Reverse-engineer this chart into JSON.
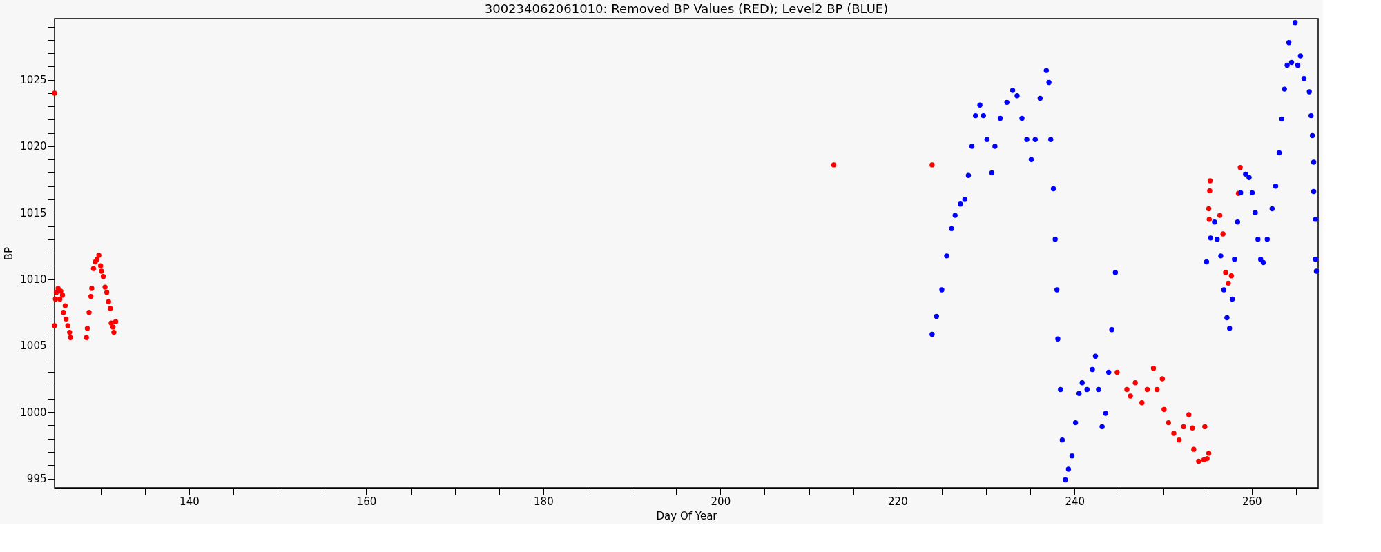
{
  "chart_data": {
    "type": "scatter",
    "title": "300234062061010: Removed BP Values (RED); Level2 BP (BLUE)",
    "xlabel": "Day Of Year",
    "ylabel": "BP",
    "xlim": [
      124.8,
      267.5
    ],
    "xticks": [
      {
        "value": 125,
        "label": null
      },
      {
        "value": 130,
        "label": null
      },
      {
        "value": 135,
        "label": null
      },
      140,
      {
        "value": 145,
        "label": null
      },
      {
        "value": 150,
        "label": null
      },
      {
        "value": 155,
        "label": null
      },
      160,
      {
        "value": 165,
        "label": null
      },
      {
        "value": 170,
        "label": null
      },
      {
        "value": 175,
        "label": null
      },
      180,
      {
        "value": 185,
        "label": null
      },
      {
        "value": 190,
        "label": null
      },
      {
        "value": 195,
        "label": null
      },
      200,
      {
        "value": 205,
        "label": null
      },
      {
        "value": 210,
        "label": null
      },
      {
        "value": 215,
        "label": null
      },
      220,
      {
        "value": 225,
        "label": null
      },
      {
        "value": 230,
        "label": null
      },
      {
        "value": 235,
        "label": null
      },
      240,
      {
        "value": 245,
        "label": null
      },
      {
        "value": 250,
        "label": null
      },
      {
        "value": 255,
        "label": null
      },
      260,
      {
        "value": 265,
        "label": null
      }
    ],
    "ylim": [
      994.3,
      1029.6
    ],
    "yticks": [
      995,
      {
        "value": 996,
        "label": null
      },
      {
        "value": 997,
        "label": null
      },
      {
        "value": 998,
        "label": null
      },
      {
        "value": 999,
        "label": null
      },
      1000,
      {
        "value": 1001,
        "label": null
      },
      {
        "value": 1002,
        "label": null
      },
      {
        "value": 1003,
        "label": null
      },
      {
        "value": 1004,
        "label": null
      },
      1005,
      {
        "value": 1006,
        "label": null
      },
      {
        "value": 1007,
        "label": null
      },
      {
        "value": 1008,
        "label": null
      },
      {
        "value": 1009,
        "label": null
      },
      1010,
      {
        "value": 1011,
        "label": null
      },
      {
        "value": 1012,
        "label": null
      },
      {
        "value": 1013,
        "label": null
      },
      {
        "value": 1014,
        "label": null
      },
      1015,
      {
        "value": 1016,
        "label": null
      },
      {
        "value": 1017,
        "label": null
      },
      {
        "value": 1018,
        "label": null
      },
      {
        "value": 1019,
        "label": null
      },
      1020,
      {
        "value": 1021,
        "label": null
      },
      {
        "value": 1022,
        "label": null
      },
      {
        "value": 1023,
        "label": null
      },
      {
        "value": 1024,
        "label": null
      },
      1025,
      {
        "value": 1026,
        "label": null
      },
      {
        "value": 1027,
        "label": null
      },
      {
        "value": 1028,
        "label": null
      },
      {
        "value": 1029,
        "label": null
      }
    ],
    "grid": false,
    "marker": "circle",
    "series": [
      {
        "color": "#ff0000",
        "x": [
          124.8,
          124.8,
          124.9,
          125.0,
          125.2,
          125.4,
          125.5,
          125.7,
          125.8,
          126.0,
          126.1,
          126.3,
          126.5,
          126.6,
          128.4,
          128.5,
          128.7,
          128.9,
          129.0,
          129.2,
          129.4,
          129.6,
          129.8,
          130.0,
          130.1,
          130.3,
          130.5,
          130.7,
          130.9,
          131.1,
          131.2,
          131.4,
          131.5,
          131.7,
          212.8,
          223.9,
          244.8,
          245.9,
          246.3,
          246.85,
          247.6,
          248.2,
          248.9,
          249.3,
          249.9,
          250.1,
          250.6,
          251.2,
          251.8,
          252.3,
          252.9,
          253.3,
          253.45,
          254.0,
          254.6,
          254.7,
          254.95,
          255.15,
          255.15,
          255.2,
          255.25,
          255.3,
          256.4,
          256.75,
          257.05,
          257.35,
          257.7,
          258.5,
          258.7
        ],
        "values": [
          1024.0,
          1006.5,
          1008.5,
          1009.0,
          1009.3,
          1008.5,
          1009.1,
          1008.8,
          1007.5,
          1008.0,
          1007.0,
          1006.5,
          1006.0,
          1005.6,
          1005.6,
          1006.3,
          1007.5,
          1008.7,
          1009.3,
          1010.8,
          1011.3,
          1011.5,
          1011.8,
          1011.0,
          1010.6,
          1010.2,
          1009.4,
          1009.0,
          1008.3,
          1007.8,
          1006.7,
          1006.4,
          1006.0,
          1006.8,
          1018.6,
          1018.6,
          1003.0,
          1001.7,
          1001.2,
          1002.2,
          1000.7,
          1001.7,
          1003.3,
          1001.7,
          1002.5,
          1000.2,
          999.2,
          998.4,
          997.9,
          998.9,
          999.8,
          998.8,
          997.2,
          996.3,
          996.4,
          998.9,
          996.5,
          996.9,
          1015.3,
          1014.5,
          1016.65,
          1017.4,
          1014.8,
          1013.4,
          1010.5,
          1009.7,
          1010.25,
          1016.45,
          1018.4
        ]
      },
      {
        "color": "#0000ff",
        "x": [
          223.9,
          224.4,
          225.0,
          225.55,
          226.1,
          226.5,
          227.1,
          227.6,
          228.0,
          228.4,
          228.8,
          229.3,
          229.7,
          230.1,
          230.65,
          231.0,
          231.6,
          232.35,
          233.0,
          233.5,
          234.05,
          234.6,
          235.1,
          235.55,
          236.1,
          236.8,
          237.1,
          237.3,
          237.6,
          237.8,
          238.0,
          238.1,
          238.4,
          238.6,
          238.95,
          239.3,
          239.7,
          240.1,
          240.5,
          240.85,
          241.4,
          242.0,
          242.35,
          242.7,
          243.1,
          243.5,
          243.85,
          244.2,
          244.6,
          254.9,
          255.35,
          255.8,
          256.1,
          256.5,
          256.85,
          257.2,
          257.5,
          257.8,
          258.05,
          258.4,
          258.75,
          259.3,
          259.7,
          260.05,
          260.4,
          260.7,
          261.0,
          261.3,
          261.75,
          262.3,
          262.7,
          263.1,
          263.4,
          263.7,
          264.0,
          264.2,
          264.5,
          264.9,
          265.2,
          265.5,
          265.9,
          266.5,
          266.7,
          266.85,
          267.0,
          267.0,
          267.2,
          267.2,
          267.3
        ],
        "values": [
          1005.85,
          1007.2,
          1009.2,
          1011.75,
          1013.8,
          1014.8,
          1015.65,
          1016.0,
          1017.8,
          1020.0,
          1022.3,
          1023.1,
          1022.3,
          1020.5,
          1018.0,
          1020.0,
          1022.1,
          1023.3,
          1024.2,
          1023.8,
          1022.1,
          1020.5,
          1019.0,
          1020.5,
          1023.6,
          1025.7,
          1024.8,
          1020.5,
          1016.8,
          1013.0,
          1009.2,
          1005.5,
          1001.7,
          997.9,
          994.9,
          995.7,
          996.7,
          999.2,
          1001.4,
          1002.2,
          1001.7,
          1003.2,
          1004.2,
          1001.7,
          998.9,
          999.9,
          1003.0,
          1006.2,
          1010.5,
          1011.3,
          1013.1,
          1014.3,
          1013.0,
          1011.75,
          1009.2,
          1007.1,
          1006.3,
          1008.5,
          1011.5,
          1014.3,
          1016.5,
          1017.9,
          1017.65,
          1016.5,
          1015.0,
          1013.0,
          1011.5,
          1011.25,
          1013.0,
          1015.3,
          1017.0,
          1019.5,
          1022.05,
          1024.3,
          1026.1,
          1027.8,
          1026.3,
          1029.3,
          1026.1,
          1026.8,
          1025.1,
          1024.1,
          1022.3,
          1020.8,
          1018.8,
          1016.6,
          1014.5,
          1011.5,
          1010.6
        ]
      }
    ]
  }
}
